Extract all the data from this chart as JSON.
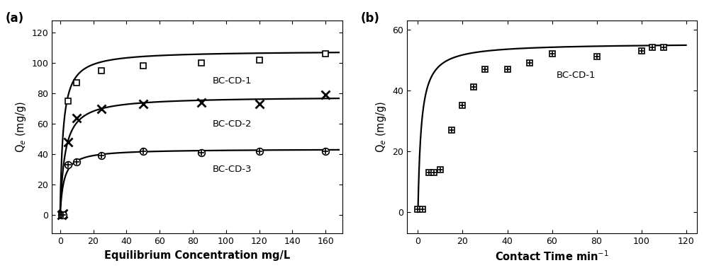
{
  "panel_a": {
    "title_label": "(a)",
    "xlabel": "Equilibrium Concentration mg/L",
    "ylabel": "Q$_e$ (mg/g)",
    "xlim": [
      -5,
      170
    ],
    "ylim": [
      -12,
      128
    ],
    "xticks": [
      0,
      20,
      40,
      60,
      80,
      100,
      120,
      140,
      160
    ],
    "yticks": [
      0,
      20,
      40,
      60,
      80,
      100,
      120
    ],
    "series": [
      {
        "label": "BC-CD-1",
        "marker": "square",
        "markersize": 6,
        "data_x": [
          1,
          2,
          5,
          10,
          25,
          50,
          85,
          120,
          160
        ],
        "data_y": [
          0,
          0,
          75,
          87,
          95,
          98,
          100,
          102,
          106
        ],
        "langmuir_qmax": 108.0,
        "langmuir_KL": 0.55,
        "annotation": "BC-CD-1",
        "ann_x": 92,
        "ann_y": 88
      },
      {
        "label": "BC-CD-2",
        "marker": "x",
        "markersize": 8,
        "data_x": [
          1,
          2,
          5,
          10,
          25,
          50,
          85,
          120,
          160
        ],
        "data_y": [
          0,
          1,
          48,
          64,
          70,
          73,
          74,
          73,
          79
        ],
        "langmuir_qmax": 78.0,
        "langmuir_KL": 0.35,
        "annotation": "BC-CD-2",
        "ann_x": 92,
        "ann_y": 60
      },
      {
        "label": "BC-CD-3",
        "marker": "circle_cross",
        "markersize": 7,
        "data_x": [
          1,
          2,
          5,
          10,
          25,
          50,
          85,
          120,
          160
        ],
        "data_y": [
          0,
          0,
          33,
          35,
          39,
          42,
          41,
          42,
          42
        ],
        "langmuir_qmax": 43.5,
        "langmuir_KL": 0.45,
        "annotation": "BC-CD-3",
        "ann_x": 92,
        "ann_y": 30
      }
    ],
    "curve_color": "#000000",
    "marker_color": "#000000",
    "marker_facecolor": "white"
  },
  "panel_b": {
    "title_label": "(b)",
    "xlabel": "Contact Time min$^{-1}$",
    "ylabel": "Q$_e$ (mg/g)",
    "xlim": [
      -5,
      125
    ],
    "ylim": [
      -7,
      63
    ],
    "xticks": [
      0,
      20,
      40,
      60,
      80,
      100,
      120
    ],
    "yticks": [
      0,
      20,
      40,
      60
    ],
    "series": [
      {
        "label": "BC-CD-1",
        "marker": "square_cross",
        "markersize": 6,
        "data_x": [
          0,
          2,
          5,
          7,
          10,
          15,
          20,
          25,
          30,
          40,
          50,
          60,
          80,
          100,
          105,
          110
        ],
        "data_y": [
          1,
          1,
          13,
          13,
          14,
          27,
          35,
          41,
          47,
          47,
          49,
          52,
          51,
          53,
          54,
          54
        ],
        "pseudo2nd_qe": 55.5,
        "pseudo2nd_k2": 0.012,
        "annotation": "BC-CD-1",
        "ann_x": 62,
        "ann_y": 45
      }
    ],
    "curve_color": "#000000",
    "marker_color": "#000000",
    "marker_facecolor": "white"
  }
}
